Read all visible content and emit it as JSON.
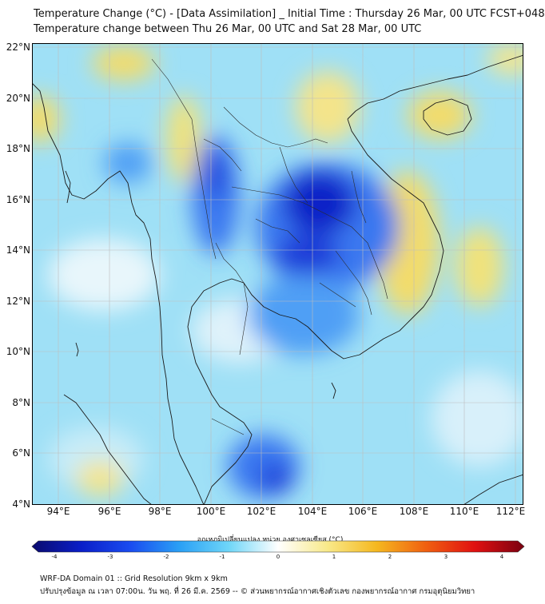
{
  "title_line1": "Temperature Change (°C) - [Data Assimilation] _ Initial Time : Thursday 26 Mar, 00 UTC FCST+048",
  "title_line2": "Temperature change between Thu 26 Mar, 00 UTC and Sat 28 Mar, 00 UTC",
  "lat_labels": [
    "22°N",
    "20°N",
    "18°N",
    "16°N",
    "14°N",
    "12°N",
    "10°N",
    "8°N",
    "6°N",
    "4°N"
  ],
  "lon_labels": [
    "94°E",
    "96°E",
    "98°E",
    "100°E",
    "102°E",
    "104°E",
    "106°E",
    "108°E",
    "110°E",
    "112°E"
  ],
  "colorbar": {
    "title": "อุณหภูมิเปลี่ยนแปลง หน่วย องศาเซลเซียส (°C)",
    "ticks": [
      "-4",
      "-3",
      "-2",
      "-1",
      "0",
      "1",
      "2",
      "3",
      "4"
    ],
    "range": [
      -4,
      4
    ]
  },
  "footer_line1": "WRF-DA Domain 01 :: Grid Resolution 9km x 9km",
  "footer_line2": "ปรับปรุงข้อมูล ณ เวลา 07:00น. วัน พฤ. ที่ 26 มี.ค. 2569 -- © ส่วนพยากรณ์อากาศเชิงตัวเลข กองพยากรณ์อากาศ กรมอุตุนิยมวิทยา",
  "colors": {
    "cold_strong": "#1020c8",
    "cold": "#3a78f0",
    "cool": "#6fd0f5",
    "neutral": "#ffffff",
    "warm": "#f5e070"
  }
}
